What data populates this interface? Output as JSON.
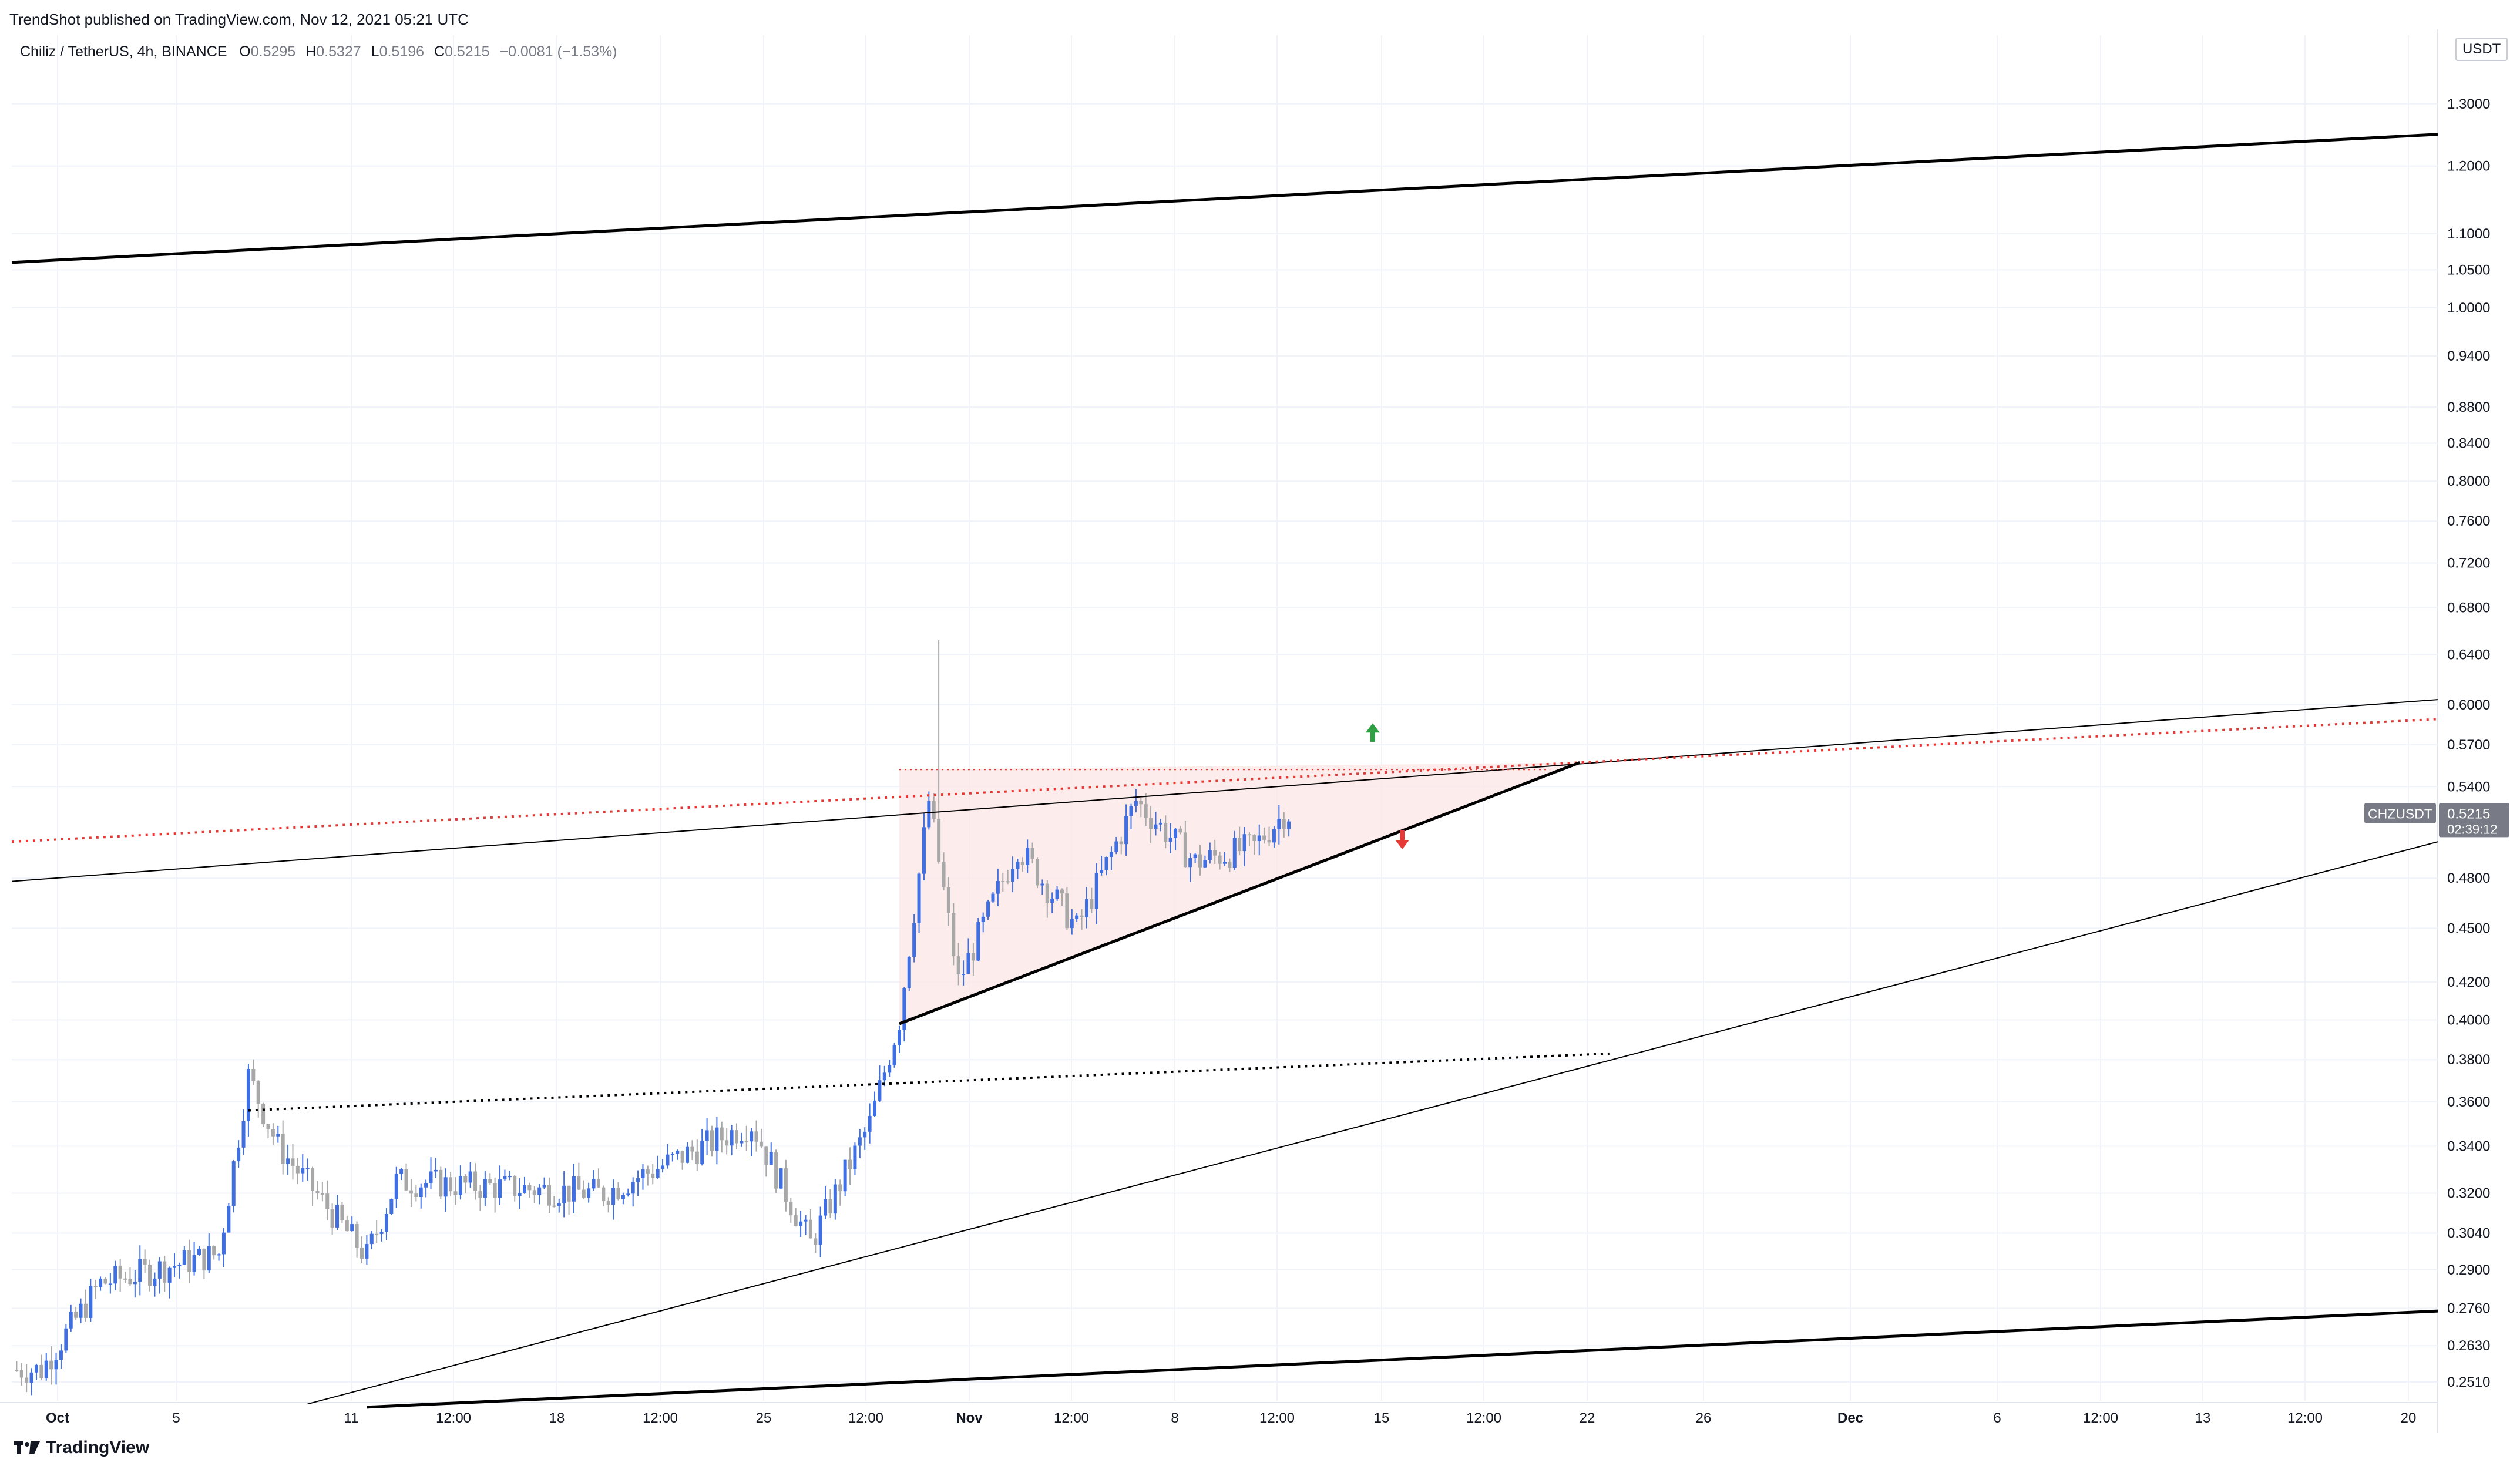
{
  "header": {
    "published": "TrendShot published on TradingView.com, Nov 12, 2021 05:21 UTC"
  },
  "legend": {
    "symbol": "Chiliz / TetherUS, 4h, BINANCE",
    "o_label": "O",
    "o": "0.5295",
    "h_label": "H",
    "h": "0.5327",
    "l_label": "L",
    "l": "0.5196",
    "c_label": "C",
    "c": "0.5215",
    "change": "−0.0081 (−1.53%)"
  },
  "price_axis": {
    "currency": "USDT",
    "ticks": [
      "1.3000",
      "1.2000",
      "1.1000",
      "1.0500",
      "1.0000",
      "0.9400",
      "0.8800",
      "0.8400",
      "0.8000",
      "0.7600",
      "0.7200",
      "0.6800",
      "0.6400",
      "0.6000",
      "0.5700",
      "0.5400",
      "0.4800",
      "0.4500",
      "0.4200",
      "0.4000",
      "0.3800",
      "0.3600",
      "0.3400",
      "0.3200",
      "0.3040",
      "0.2900",
      "0.2760",
      "0.2630",
      "0.2510"
    ],
    "current_label": "CHZUSDT",
    "current_price": "0.5215",
    "countdown": "02:39:12"
  },
  "time_axis": {
    "labels": [
      "Oct",
      "5",
      "11",
      "12:00",
      "18",
      "12:00",
      "25",
      "12:00",
      "Nov",
      "12:00",
      "8",
      "12:00",
      "15",
      "12:00",
      "22",
      "26",
      "Dec",
      "6",
      "12:00",
      "13",
      "12:00",
      "20"
    ]
  },
  "footer": {
    "brand": "TradingView",
    "logo_icon": "tradingview-logo-icon"
  },
  "colors": {
    "bull": "#3f6fe0",
    "bear": "#a8a8a8",
    "trend": "#000000",
    "resistance": "#e53935",
    "up_arrow": "#2ea043",
    "down_arrow": "#e53935",
    "triangle_fill": "#fde7e7"
  },
  "chart_data": {
    "type": "candlestick",
    "symbol": "CHZUSDT",
    "interval": "4h",
    "exchange": "BINANCE",
    "y_scale": "log",
    "ylim": [
      0.245,
      1.42
    ],
    "x_range": [
      "2021-09-30",
      "2021-12-21"
    ],
    "last_close": 0.5215,
    "key_points": [
      {
        "date": "2021-10-01",
        "price": 0.255
      },
      {
        "date": "2021-10-03",
        "price": 0.285
      },
      {
        "date": "2021-10-07",
        "price": 0.296
      },
      {
        "date": "2021-10-08",
        "price": 0.372
      },
      {
        "date": "2021-10-09",
        "price": 0.34
      },
      {
        "date": "2021-10-12",
        "price": 0.295
      },
      {
        "date": "2021-10-13",
        "price": 0.325
      },
      {
        "date": "2021-10-20",
        "price": 0.32
      },
      {
        "date": "2021-10-25",
        "price": 0.35
      },
      {
        "date": "2021-10-27",
        "price": 0.3
      },
      {
        "date": "2021-10-29",
        "price": 0.35
      },
      {
        "date": "2021-10-30",
        "price": 0.4
      },
      {
        "date": "2021-10-31",
        "price": 0.53
      },
      {
        "date": "2021-11-01",
        "price": 0.42
      },
      {
        "date": "2021-11-03",
        "price": 0.5
      },
      {
        "date": "2021-11-05",
        "price": 0.45
      },
      {
        "date": "2021-11-07",
        "price": 0.53
      },
      {
        "date": "2021-11-09",
        "price": 0.49
      },
      {
        "date": "2021-11-11",
        "price": 0.5
      },
      {
        "date": "2021-11-12",
        "price": 0.5215
      }
    ],
    "spike_high": {
      "date": "2021-10-31",
      "price": 0.652
    },
    "drawings": [
      {
        "kind": "channel-top-thick",
        "from": [
          "2021-09-30",
          1.06
        ],
        "to": [
          "2021-12-21",
          1.25
        ]
      },
      {
        "kind": "channel-bottom-thick",
        "from": [
          "2021-10-12",
          0.243
        ],
        "to": [
          "2021-12-21",
          0.275
        ]
      },
      {
        "kind": "channel-upper-thin",
        "from": [
          "2021-09-30",
          0.478
        ],
        "to": [
          "2021-12-21",
          0.604
        ]
      },
      {
        "kind": "channel-lower-thin",
        "from": [
          "2021-10-10",
          0.244
        ],
        "to": [
          "2021-12-21",
          0.503
        ]
      },
      {
        "kind": "resistance-dotted-red",
        "from": [
          "2021-09-30",
          0.503
        ],
        "to": [
          "2021-12-21",
          0.589
        ]
      },
      {
        "kind": "support-dotted-black",
        "from": [
          "2021-10-08",
          0.356
        ],
        "to": [
          "2021-11-23",
          0.383
        ]
      },
      {
        "kind": "triangle-top-dotted",
        "from": [
          "2021-10-30",
          0.552
        ],
        "to": [
          "2021-11-21",
          0.552
        ]
      },
      {
        "kind": "triangle-bottom-solid",
        "from": [
          "2021-10-30",
          0.398
        ],
        "to": [
          "2021-11-22",
          0.557
        ]
      }
    ]
  }
}
